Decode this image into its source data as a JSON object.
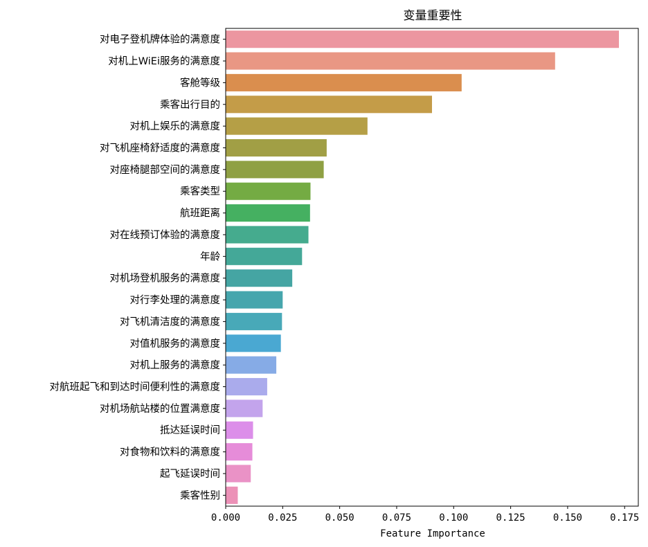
{
  "chart_data": {
    "type": "bar",
    "orientation": "horizontal",
    "title": "变量重要性",
    "xlabel": "Feature Importance",
    "ylabel": "",
    "xlim": [
      0,
      0.181
    ],
    "xticks": [
      0.0,
      0.025,
      0.05,
      0.075,
      0.1,
      0.125,
      0.15,
      0.175
    ],
    "xtick_labels": [
      "0.000",
      "0.025",
      "0.050",
      "0.075",
      "0.100",
      "0.125",
      "0.150",
      "0.175"
    ],
    "grid": false,
    "legend": "none",
    "categories": [
      "对电子登机牌体验的满意度",
      "对机上WiEi服务的满意度",
      "客舱等级",
      "乘客出行目的",
      "对机上娱乐的满意度",
      "对飞机座椅舒适度的满意度",
      "对座椅腿部空间的满意度",
      "乘客类型",
      "航班距离",
      "对在线预订体验的满意度",
      "年龄",
      "对机场登机服务的满意度",
      "对行李处理的满意度",
      "对飞机清洁度的满意度",
      "对值机服务的满意度",
      "对机上服务的满意度",
      "对航班起飞和到达时间便利性的满意度",
      "对机场航站楼的位置满意度",
      "抵达延误时间",
      "对食物和饮料的满意度",
      "起飞延误时间",
      "乘客性别"
    ],
    "values": [
      0.1725,
      0.1445,
      0.1035,
      0.0905,
      0.0622,
      0.0443,
      0.043,
      0.0372,
      0.037,
      0.0363,
      0.0335,
      0.0292,
      0.025,
      0.0247,
      0.0242,
      0.0222,
      0.0182,
      0.0162,
      0.012,
      0.0117,
      0.011,
      0.0053
    ],
    "colors": [
      "#ec96a0",
      "#e99784",
      "#da8e4e",
      "#c49c48",
      "#b59f46",
      "#a19f45",
      "#8fa043",
      "#74ab43",
      "#45b061",
      "#45ab8e",
      "#44a898",
      "#45a5a3",
      "#46a6ad",
      "#48a9b8",
      "#4aa8d2",
      "#86abe6",
      "#aaabec",
      "#c3a4ec",
      "#dc8ee9",
      "#e68cd9",
      "#ea92c6",
      "#ec91b7"
    ]
  }
}
